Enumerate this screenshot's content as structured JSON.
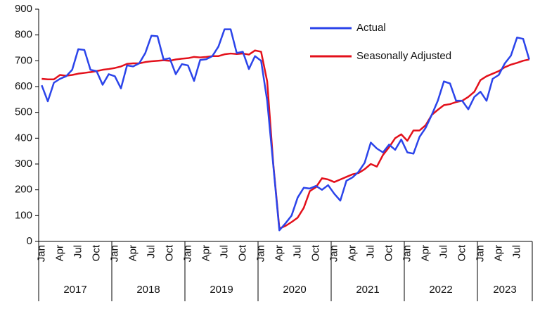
{
  "chart_data": {
    "type": "line",
    "categories": [
      "Jan",
      null,
      null,
      "Apr",
      null,
      null,
      "Jul",
      null,
      null,
      "Oct",
      null,
      null,
      "Jan",
      null,
      null,
      "Apr",
      null,
      null,
      "Jul",
      null,
      null,
      "Oct",
      null,
      null,
      "Jan",
      null,
      null,
      "Apr",
      null,
      null,
      "Jul",
      null,
      null,
      "Oct",
      null,
      null,
      "Jan",
      null,
      null,
      "Apr",
      null,
      null,
      "Jul",
      null,
      null,
      "Oct",
      null,
      null,
      "Jan",
      null,
      null,
      "Apr",
      null,
      null,
      "Jul",
      null,
      null,
      "Oct",
      null,
      null,
      "Jan",
      null,
      null,
      "Apr",
      null,
      null,
      "Jul",
      null,
      null,
      "Oct",
      null,
      null,
      "Jan",
      null,
      null,
      "Apr",
      null,
      null,
      "Jul",
      null,
      null
    ],
    "years": [
      "2017",
      "2018",
      "2019",
      "2020",
      "2021",
      "2022",
      "2023"
    ],
    "series": [
      {
        "name": "Actual",
        "color": "#2b44ea",
        "values": [
          605,
          543,
          615,
          630,
          640,
          665,
          745,
          742,
          665,
          660,
          607,
          648,
          640,
          593,
          682,
          678,
          690,
          730,
          797,
          795,
          705,
          710,
          648,
          687,
          682,
          622,
          703,
          706,
          718,
          755,
          822,
          822,
          730,
          735,
          668,
          718,
          700,
          545,
          295,
          43,
          70,
          100,
          170,
          208,
          205,
          215,
          200,
          218,
          185,
          158,
          235,
          248,
          270,
          305,
          383,
          360,
          345,
          375,
          355,
          395,
          345,
          340,
          405,
          440,
          490,
          545,
          620,
          612,
          545,
          545,
          512,
          560,
          580,
          545,
          630,
          645,
          690,
          720,
          790,
          785,
          705
        ]
      },
      {
        "name": "Seasonally Adjusted",
        "color": "#e3101b",
        "values": [
          630,
          628,
          628,
          645,
          642,
          645,
          650,
          653,
          656,
          660,
          665,
          668,
          672,
          678,
          688,
          690,
          690,
          695,
          698,
          700,
          702,
          700,
          705,
          708,
          710,
          715,
          713,
          715,
          718,
          718,
          725,
          728,
          726,
          728,
          724,
          740,
          735,
          620,
          300,
          50,
          60,
          75,
          92,
          130,
          195,
          210,
          245,
          240,
          230,
          240,
          250,
          260,
          265,
          280,
          300,
          290,
          335,
          365,
          400,
          415,
          390,
          430,
          430,
          450,
          490,
          510,
          528,
          532,
          540,
          545,
          560,
          580,
          625,
          640,
          650,
          660,
          675,
          685,
          692,
          700,
          705
        ]
      }
    ],
    "ylim": [
      0,
      900
    ],
    "yticks": [
      0,
      100,
      200,
      300,
      400,
      500,
      600,
      700,
      800,
      900
    ],
    "legend": "upper right"
  }
}
